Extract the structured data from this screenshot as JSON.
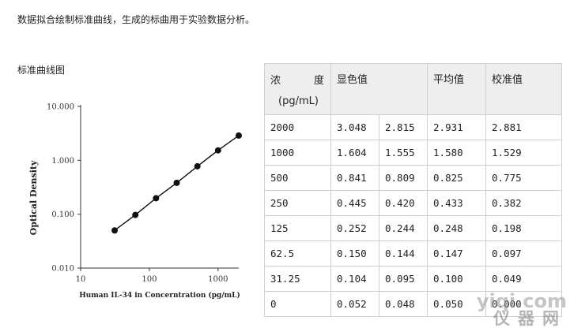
{
  "intro_text": "数据拟合绘制标准曲线，生成的标曲用于实验数据分析。",
  "chart_heading": "标准曲线图",
  "chart_data": {
    "type": "line",
    "xlabel": "Human IL-34 in Concerntration (pg/mL)",
    "ylabel": "Optical Density",
    "x_scale": "log",
    "y_scale": "log",
    "xlim": [
      10,
      2000
    ],
    "ylim": [
      0.01,
      10
    ],
    "x_ticks": [
      "10",
      "100",
      "1000"
    ],
    "y_ticks": [
      "0.010",
      "0.100",
      "1.000",
      "10.000"
    ],
    "grid": false,
    "series": [
      {
        "x": [
          31.25,
          62.5,
          125,
          250,
          500,
          1000,
          2000
        ],
        "y": [
          0.05,
          0.097,
          0.198,
          0.382,
          0.775,
          1.529,
          2.881
        ]
      }
    ]
  },
  "table": {
    "headers": {
      "concentration_top_left": "浓",
      "concentration_top_right": "度",
      "concentration_unit": "(pg/mL)",
      "od_value": "显色值",
      "average": "平均值",
      "corrected": "校准值"
    },
    "rows": [
      [
        "2000",
        "3.048",
        "2.815",
        "2.931",
        "2.881"
      ],
      [
        "1000",
        "1.604",
        "1.555",
        "1.580",
        "1.529"
      ],
      [
        "500",
        "0.841",
        "0.809",
        "0.825",
        "0.775"
      ],
      [
        "250",
        "0.445",
        "0.420",
        "0.433",
        "0.382"
      ],
      [
        "125",
        "0.252",
        "0.244",
        "0.248",
        "0.198"
      ],
      [
        "62.5",
        "0.150",
        "0.144",
        "0.147",
        "0.097"
      ],
      [
        "31.25",
        "0.104",
        "0.095",
        "0.100",
        "0.049"
      ],
      [
        "0",
        "0.052",
        "0.048",
        "0.050",
        "0.000"
      ]
    ]
  },
  "watermark": {
    "line1": "yiqi.com",
    "line2": "仪器网"
  }
}
